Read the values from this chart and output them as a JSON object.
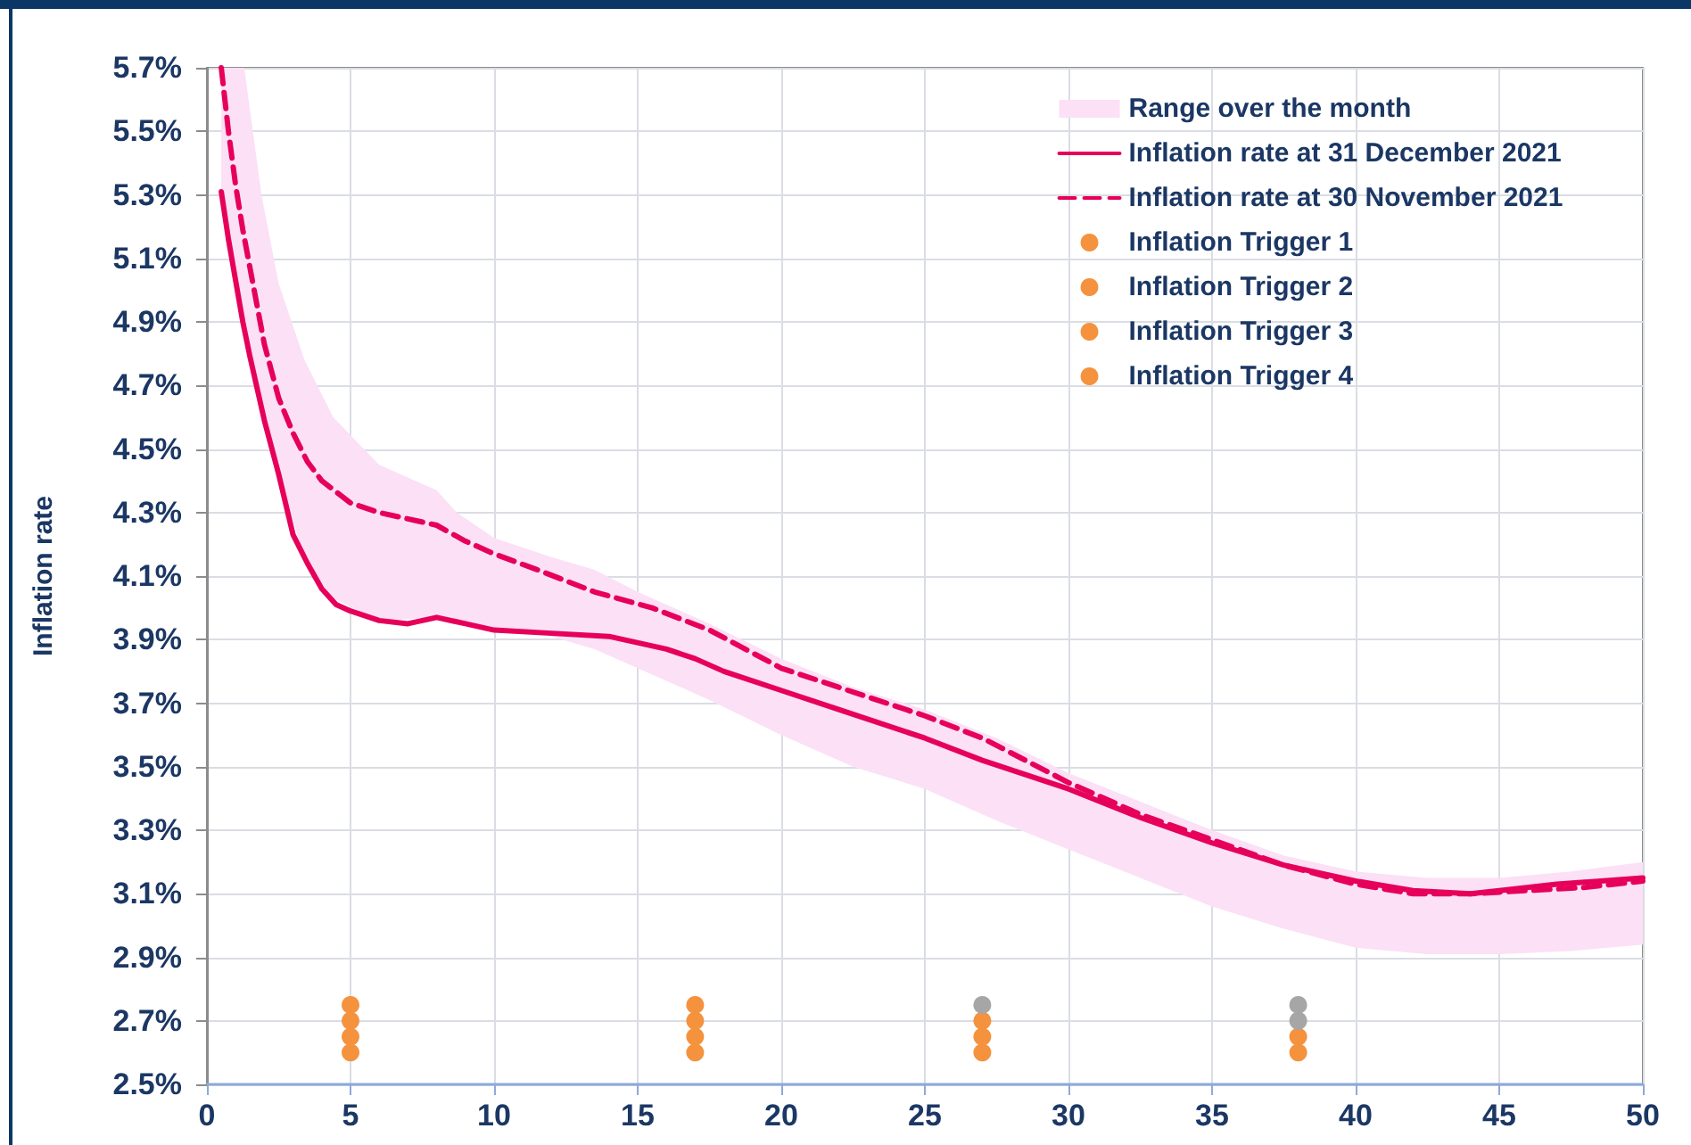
{
  "chart_data": {
    "type": "line",
    "ylabel": "Inflation rate",
    "xlim": [
      0,
      50
    ],
    "xticks": [
      0,
      5,
      10,
      15,
      20,
      25,
      30,
      35,
      40,
      45,
      50
    ],
    "ylim": [
      2.5,
      5.7
    ],
    "yticks": [
      {
        "value": 2.5,
        "label": "2.5%"
      },
      {
        "value": 2.7,
        "label": "2.7%"
      },
      {
        "value": 2.9,
        "label": "2.9%"
      },
      {
        "value": 3.1,
        "label": "3.1%"
      },
      {
        "value": 3.3,
        "label": "3.3%"
      },
      {
        "value": 3.5,
        "label": "3.5%"
      },
      {
        "value": 3.7,
        "label": "3.7%"
      },
      {
        "value": 3.9,
        "label": "3.9%"
      },
      {
        "value": 4.1,
        "label": "4.1%"
      },
      {
        "value": 4.3,
        "label": "4.3%"
      },
      {
        "value": 4.5,
        "label": "4.5%"
      },
      {
        "value": 4.7,
        "label": "4.7%"
      },
      {
        "value": 4.9,
        "label": "4.9%"
      },
      {
        "value": 5.1,
        "label": "5.1%"
      },
      {
        "value": 5.3,
        "label": "5.3%"
      },
      {
        "value": 5.5,
        "label": "5.5%"
      },
      {
        "value": 5.7,
        "label": "5.7%"
      }
    ],
    "grid": true,
    "legend": "top right",
    "series": [
      {
        "name": "Range over the month",
        "type": "area",
        "color": "#fbe0f6",
        "x": [
          0.5,
          1.3,
          1.9,
          2.5,
          3.4,
          4.4,
          6,
          8,
          8.7,
          10,
          12,
          13.5,
          15,
          17.5,
          20,
          22.5,
          25,
          27.5,
          30,
          32.5,
          35,
          37.5,
          40,
          42.5,
          45,
          47.5,
          50
        ],
        "values": [
          null,
          null,
          null,
          null,
          null,
          null,
          null,
          null,
          null,
          null,
          null,
          null,
          null,
          null,
          null,
          null,
          null,
          null,
          null,
          null,
          null,
          null,
          null,
          null,
          null,
          null,
          null
        ],
        "upper": [
          5.7,
          5.7,
          5.3,
          5.02,
          4.78,
          4.6,
          4.45,
          4.37,
          4.3,
          4.22,
          4.16,
          4.12,
          4.05,
          3.95,
          3.84,
          3.75,
          3.68,
          3.59,
          3.48,
          3.39,
          3.3,
          3.22,
          3.17,
          3.15,
          3.15,
          3.17,
          3.2
        ],
        "lower": [
          5.31,
          4.9,
          4.62,
          4.43,
          4.15,
          4.03,
          3.96,
          3.97,
          3.95,
          3.93,
          3.91,
          3.87,
          3.81,
          3.71,
          3.6,
          3.5,
          3.43,
          3.33,
          3.24,
          3.15,
          3.06,
          2.99,
          2.93,
          2.91,
          2.91,
          2.92,
          2.94
        ]
      },
      {
        "name": "Inflation rate at 31 December 2021",
        "color": "#e6005a",
        "line_style": "solid",
        "marker": "none",
        "x": [
          0.5,
          0.75,
          1,
          1.25,
          1.5,
          2,
          2.5,
          3,
          3.5,
          4,
          4.5,
          5,
          6,
          7,
          8,
          9,
          10,
          12,
          14,
          16,
          17,
          18,
          20,
          22,
          25,
          27,
          30,
          32.5,
          35,
          37.5,
          40,
          42,
          44,
          45,
          47,
          50
        ],
        "values": [
          5.31,
          5.16,
          5.03,
          4.9,
          4.79,
          4.59,
          4.42,
          4.23,
          4.14,
          4.06,
          4.01,
          3.99,
          3.96,
          3.95,
          3.97,
          3.95,
          3.93,
          3.92,
          3.91,
          3.87,
          3.84,
          3.8,
          3.74,
          3.68,
          3.59,
          3.52,
          3.43,
          3.34,
          3.26,
          3.19,
          3.14,
          3.11,
          3.1,
          3.11,
          3.13,
          3.15
        ]
      },
      {
        "name": "Inflation rate at 30 November 2021",
        "color": "#e6005a",
        "line_style": "dashed",
        "marker": "none",
        "x": [
          0.5,
          0.75,
          1,
          1.25,
          1.5,
          2,
          2.5,
          3,
          3.5,
          4,
          5,
          6,
          7,
          8,
          9,
          10,
          11.5,
          13.5,
          15.5,
          17.5,
          20,
          22,
          25,
          27,
          30,
          32.5,
          35,
          37.5,
          40,
          42,
          44,
          46,
          48,
          50
        ],
        "values": [
          5.7,
          5.5,
          5.33,
          5.19,
          5.07,
          4.83,
          4.66,
          4.55,
          4.46,
          4.4,
          4.33,
          4.3,
          4.28,
          4.26,
          4.21,
          4.17,
          4.12,
          4.05,
          4,
          3.93,
          3.81,
          3.75,
          3.66,
          3.59,
          3.45,
          3.35,
          3.27,
          3.19,
          3.13,
          3.1,
          3.1,
          3.11,
          3.12,
          3.14
        ]
      },
      {
        "name": "Inflation Trigger 1",
        "type": "scatter",
        "color": "#f5923e",
        "marker": "circle",
        "x": [
          5,
          17,
          27,
          38
        ],
        "values": [
          2.6,
          2.6,
          2.6,
          2.6
        ],
        "colors": [
          "#f5923e",
          "#f5923e",
          "#f5923e",
          "#f5923e"
        ]
      },
      {
        "name": "Inflation Trigger 2",
        "type": "scatter",
        "color": "#f5923e",
        "marker": "circle",
        "x": [
          5,
          17,
          27,
          38
        ],
        "values": [
          2.65,
          2.65,
          2.65,
          2.65
        ],
        "colors": [
          "#f5923e",
          "#f5923e",
          "#f5923e",
          "#f5923e"
        ]
      },
      {
        "name": "Inflation Trigger 3",
        "type": "scatter",
        "color": "#f5923e",
        "marker": "circle",
        "x": [
          5,
          17,
          27,
          38
        ],
        "values": [
          2.7,
          2.7,
          2.7,
          2.7
        ],
        "colors": [
          "#f5923e",
          "#f5923e",
          "#f5923e",
          "#a6a6a6"
        ]
      },
      {
        "name": "Inflation Trigger 4",
        "type": "scatter",
        "color": "#f5923e",
        "marker": "circle",
        "x": [
          5,
          17,
          27,
          38
        ],
        "values": [
          2.75,
          2.75,
          2.75,
          2.75
        ],
        "colors": [
          "#f5923e",
          "#f5923e",
          "#a6a6a6",
          "#a6a6a6"
        ]
      }
    ]
  }
}
